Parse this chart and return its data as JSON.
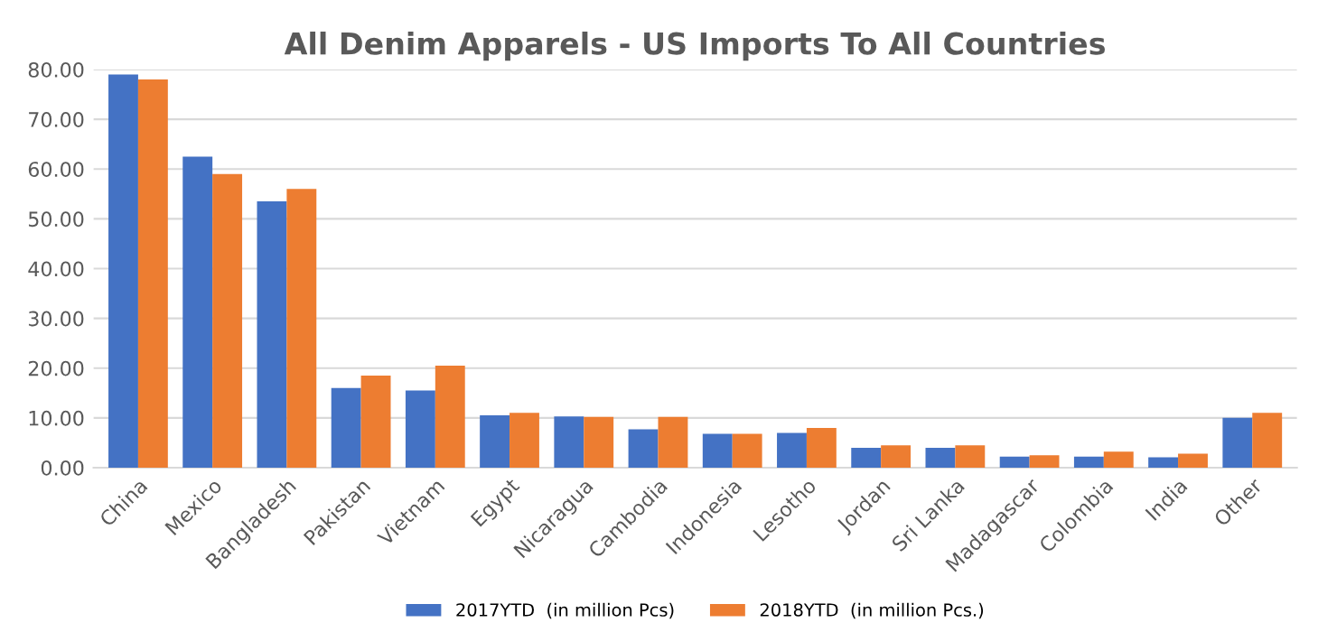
{
  "chart_data": {
    "type": "bar",
    "title": "All Denim Apparels - US Imports To All Countries",
    "categories": [
      "China",
      "Mexico",
      "Bangladesh",
      "Pakistan",
      "Vietnam",
      "Egypt",
      "Nicaragua",
      "Cambodia",
      "Indonesia",
      "Lesotho",
      "Jordan",
      "Sri Lanka",
      "Madagascar",
      "Colombia",
      "India",
      "Other"
    ],
    "series": [
      {
        "name": "2017YTD  (in million Pcs)",
        "color": "#4472c4",
        "values": [
          79,
          62.5,
          53.5,
          16,
          15.5,
          10.5,
          10.3,
          7.7,
          6.8,
          7,
          4,
          4,
          2.2,
          2.2,
          2.1,
          10
        ]
      },
      {
        "name": "2018YTD  (in million Pcs.)",
        "color": "#ed7d31",
        "values": [
          78,
          59,
          56,
          18.5,
          20.5,
          11,
          10.2,
          10.2,
          6.8,
          8,
          4.5,
          4.5,
          2.5,
          3.2,
          2.8,
          11
        ]
      }
    ],
    "ylim": [
      0,
      80
    ],
    "yticks": [
      {
        "value": 0,
        "label": "0.00"
      },
      {
        "value": 10,
        "label": "10.00"
      },
      {
        "value": 20,
        "label": "20.00"
      },
      {
        "value": 30,
        "label": "30.00"
      },
      {
        "value": 40,
        "label": "40.00"
      },
      {
        "value": 50,
        "label": "50.00"
      },
      {
        "value": 60,
        "label": "60.00"
      },
      {
        "value": 70,
        "label": "70.00"
      },
      {
        "value": 80,
        "label": "80.00"
      }
    ],
    "grid": "y",
    "legend": "bottom"
  }
}
